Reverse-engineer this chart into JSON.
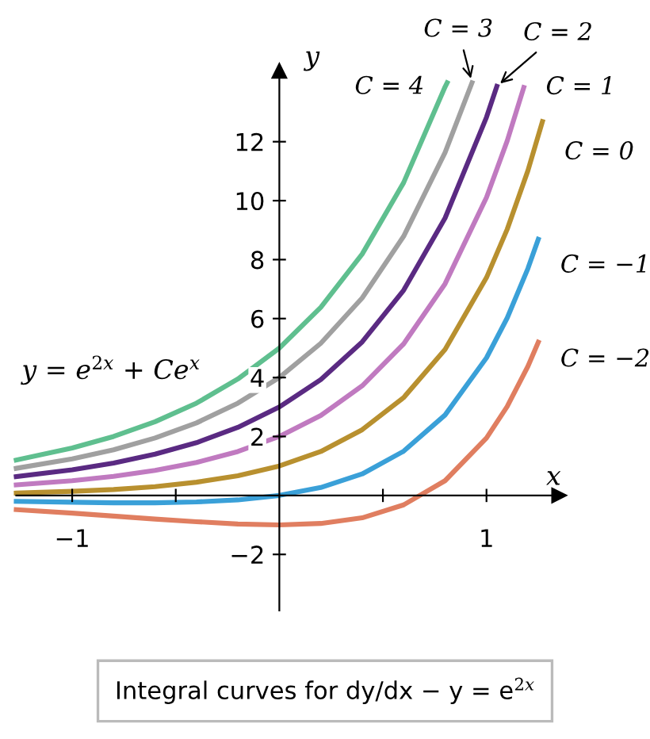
{
  "chart_data": {
    "type": "line",
    "xlabel": "x",
    "ylabel": "y",
    "xlim": [
      -1.27,
      1.35
    ],
    "ylim": [
      -3.9,
      14.4
    ],
    "xticks": [
      -1,
      {
        "value": -0.5,
        "label": null
      },
      {
        "value": 0.5,
        "label": null
      },
      1
    ],
    "yticks": [
      -2,
      2,
      4,
      6,
      8,
      10,
      12
    ],
    "grid": false,
    "legend": false,
    "marker": "none",
    "line_style": "solid",
    "series": [
      {
        "name": "C = 4",
        "color": "#5fbf8f",
        "x": [
          -1.27,
          -1.0,
          -0.8,
          -0.6,
          -0.4,
          -0.2,
          0,
          0.2,
          0.4,
          0.6,
          0.8,
          0.81
        ],
        "values": [
          1.2,
          1.61,
          2.0,
          2.5,
          3.13,
          3.95,
          5.0,
          6.38,
          8.19,
          10.61,
          13.86,
          14.0
        ]
      },
      {
        "name": "C = 3",
        "color": "#a0a0a0",
        "x": [
          -1.27,
          -1.0,
          -0.8,
          -0.6,
          -0.4,
          -0.2,
          0,
          0.2,
          0.4,
          0.6,
          0.8,
          0.93
        ],
        "values": [
          0.92,
          1.24,
          1.55,
          1.95,
          2.46,
          3.13,
          4.0,
          5.16,
          6.7,
          8.79,
          11.63,
          14.0
        ]
      },
      {
        "name": "C = 2",
        "color": "#5a2a82",
        "x": [
          -1.27,
          -1.0,
          -0.8,
          -0.6,
          -0.4,
          -0.2,
          0,
          0.2,
          0.4,
          0.6,
          0.8,
          1.0,
          1.05
        ],
        "values": [
          0.64,
          0.87,
          1.1,
          1.4,
          1.79,
          2.31,
          3.0,
          3.93,
          5.21,
          6.96,
          9.41,
          12.83,
          13.88
        ]
      },
      {
        "name": "C = 1",
        "color": "#c07ac0",
        "x": [
          -1.27,
          -1.0,
          -0.8,
          -0.6,
          -0.4,
          -0.2,
          0,
          0.2,
          0.4,
          0.6,
          0.8,
          1.0,
          1.1,
          1.18
        ],
        "values": [
          0.36,
          0.5,
          0.65,
          0.85,
          1.12,
          1.49,
          2.0,
          2.71,
          3.72,
          5.14,
          7.18,
          10.11,
          12.03,
          13.84
        ]
      },
      {
        "name": "C = 0",
        "color": "#b8902f",
        "x": [
          -1.27,
          -1.0,
          -0.8,
          -0.6,
          -0.4,
          -0.2,
          0,
          0.2,
          0.4,
          0.6,
          0.8,
          1.0,
          1.1,
          1.2,
          1.27
        ],
        "values": [
          0.08,
          0.14,
          0.2,
          0.3,
          0.45,
          0.67,
          1.0,
          1.49,
          2.23,
          3.32,
          4.95,
          7.39,
          9.03,
          11.02,
          12.68
        ]
      },
      {
        "name": "C = −1",
        "color": "#3aa0d8",
        "x": [
          -1.27,
          -1.0,
          -0.8,
          -0.6,
          -0.4,
          -0.2,
          0,
          0.2,
          0.4,
          0.6,
          0.8,
          1.0,
          1.1,
          1.2,
          1.25
        ],
        "values": [
          -0.2,
          -0.23,
          -0.25,
          -0.25,
          -0.22,
          -0.15,
          0.0,
          0.27,
          0.73,
          1.5,
          2.73,
          4.67,
          6.02,
          7.7,
          8.69
        ]
      },
      {
        "name": "C = −2",
        "color": "#e07e60",
        "x": [
          -1.27,
          -1.0,
          -0.8,
          -0.6,
          -0.4,
          -0.2,
          0,
          0.2,
          0.4,
          0.6,
          0.8,
          1.0,
          1.1,
          1.2,
          1.25
        ],
        "values": [
          -0.48,
          -0.6,
          -0.7,
          -0.8,
          -0.89,
          -0.97,
          -1.0,
          -0.95,
          -0.76,
          -0.32,
          0.5,
          1.95,
          3.02,
          4.38,
          5.2
        ]
      }
    ],
    "annotations": [
      "y = e$^{2x}$ + Ce$^{x}$",
      "Integral curves for dy/dx − y = e$^{2x}$"
    ]
  }
}
